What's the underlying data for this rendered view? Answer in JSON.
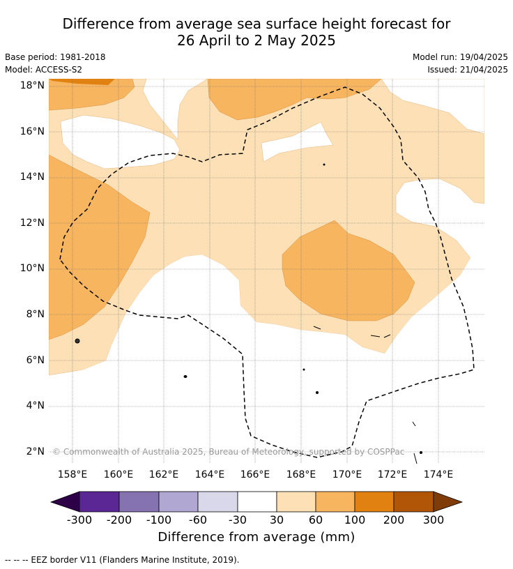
{
  "title_line1": "Difference from average sea surface height forecast for",
  "title_line2": "26 April to 2 May 2025",
  "meta": {
    "base_period": "Base period: 1981-2018",
    "model": "Model: ACCESS-S2",
    "model_run": "Model run: 19/04/2025",
    "issued": "Issued: 21/04/2025"
  },
  "axes": {
    "lat_labels": [
      "18°N",
      "16°N",
      "14°N",
      "12°N",
      "10°N",
      "8°N",
      "6°N",
      "4°N",
      "2°N"
    ],
    "lon_labels": [
      "158°E",
      "160°E",
      "162°E",
      "164°E",
      "166°E",
      "168°E",
      "170°E",
      "172°E",
      "174°E"
    ]
  },
  "colorbar": {
    "title": "Difference from average (mm)",
    "tick_labels": [
      "-300",
      "-200",
      "-100",
      "-60",
      "-30",
      "30",
      "60",
      "100",
      "200",
      "300"
    ],
    "colors": [
      "#2d0047",
      "#5b2794",
      "#8473b0",
      "#b0a8d2",
      "#d8d8ea",
      "#ffffff",
      "#fde0b6",
      "#f8b560",
      "#e08112",
      "#b15607",
      "#7f3b08"
    ]
  },
  "legend": {
    "eez_line": "--  --  -- EEZ border V11 (Flanders Marine Institute, 2019)."
  },
  "copyright": "© Commonwealth of Australia 2025, Bureau of Meteorology, supported by COSPPac",
  "map_colors": {
    "light_orange": "#fde0b6",
    "mid_orange": "#f8b560",
    "dark_orange": "#e08112"
  }
}
